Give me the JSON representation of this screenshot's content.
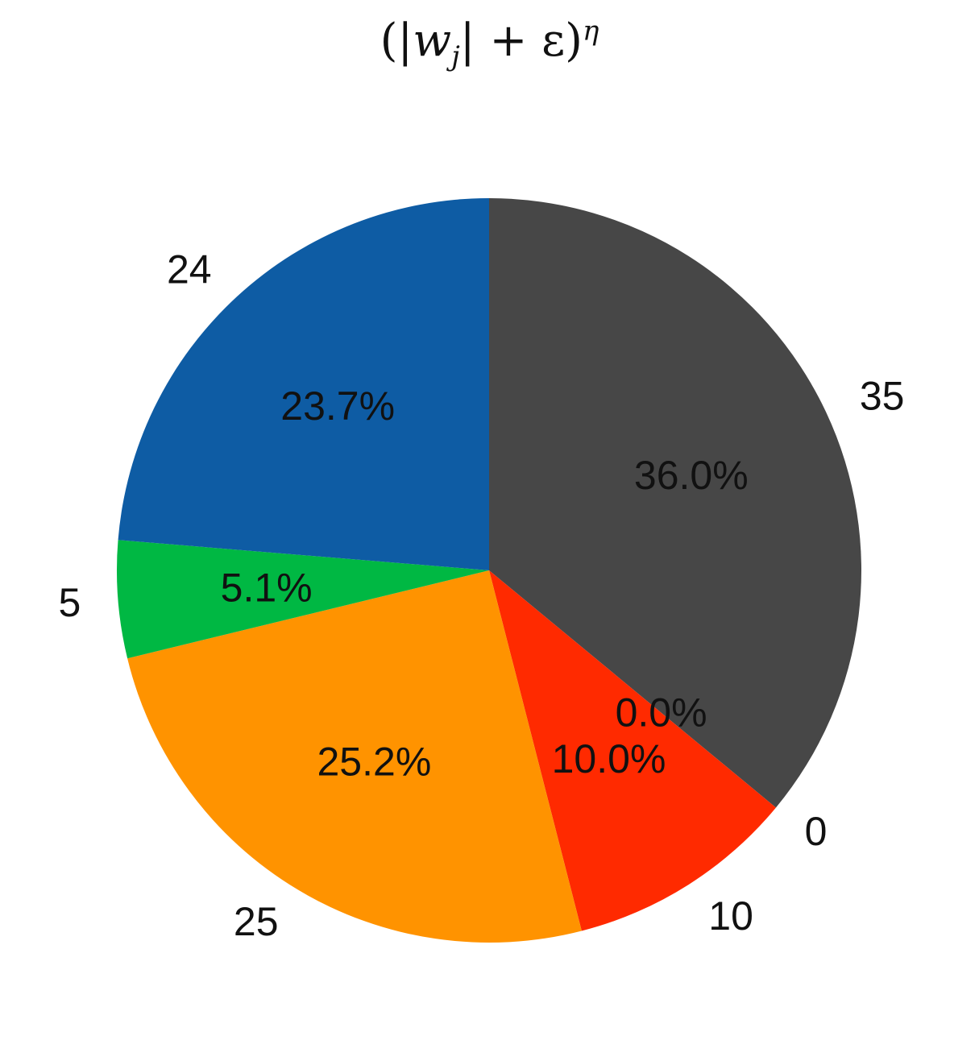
{
  "chart_data": {
    "type": "pie",
    "title": "(|w_j| + ε)^η",
    "title_parts": {
      "open": "(|",
      "var": "w",
      "sub": "j",
      "mid": "| + ε)",
      "sup": "η"
    },
    "slices": [
      {
        "label": "35",
        "percent": 36.0,
        "pct_label": "36.0%",
        "color": "#474747"
      },
      {
        "label": "0",
        "percent": 0.0,
        "pct_label": "0.0%",
        "color": "#e04a1a"
      },
      {
        "label": "10",
        "percent": 10.0,
        "pct_label": "10.0%",
        "color": "#ff2a00"
      },
      {
        "label": "25",
        "percent": 25.2,
        "pct_label": "25.2%",
        "color": "#ff9300"
      },
      {
        "label": "5",
        "percent": 5.1,
        "pct_label": "5.1%",
        "color": "#00b843"
      },
      {
        "label": "24",
        "percent": 23.7,
        "pct_label": "23.7%",
        "color": "#0e5ca4"
      }
    ],
    "start_angle_deg": 90,
    "direction": "clockwise"
  }
}
